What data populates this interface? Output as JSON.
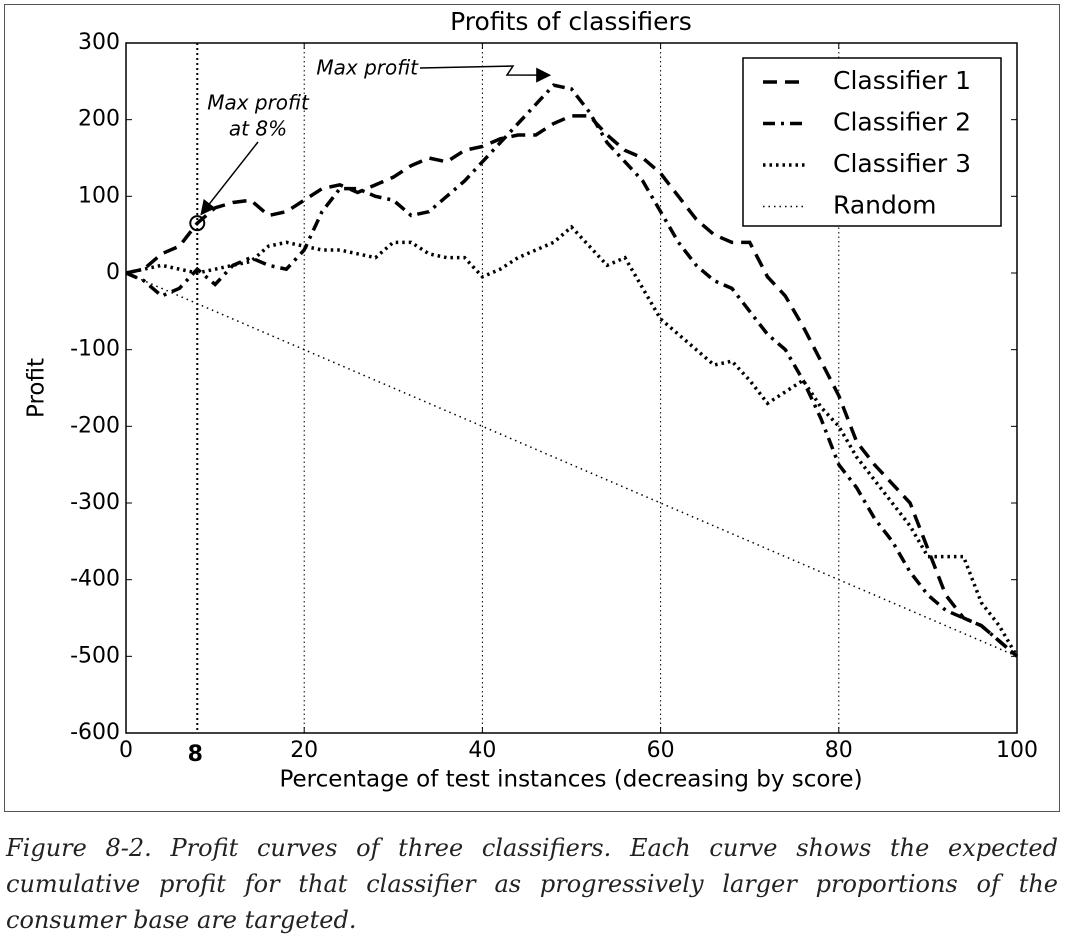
{
  "chart_data": {
    "type": "line",
    "title": "Profits of classifiers",
    "x_label": "Percentage of test instances (decreasing by score)",
    "y_label": "Profit",
    "x": [
      0,
      2,
      4,
      6,
      8,
      10,
      12,
      14,
      16,
      18,
      20,
      22,
      24,
      26,
      28,
      30,
      32,
      34,
      36,
      38,
      40,
      42,
      44,
      46,
      48,
      50,
      52,
      54,
      56,
      58,
      60,
      62,
      64,
      66,
      68,
      70,
      72,
      74,
      76,
      78,
      80,
      82,
      84,
      86,
      88,
      90,
      92,
      94,
      96,
      98,
      100
    ],
    "series": [
      {
        "name": "Classifier 1",
        "color": "#000000",
        "linestyle": "dashed",
        "values": [
          0,
          5,
          25,
          35,
          65,
          85,
          92,
          95,
          75,
          80,
          95,
          110,
          115,
          105,
          115,
          125,
          140,
          150,
          145,
          160,
          165,
          175,
          180,
          180,
          195,
          205,
          205,
          180,
          160,
          150,
          130,
          100,
          70,
          50,
          40,
          40,
          -5,
          -30,
          -70,
          -115,
          -160,
          -220,
          -250,
          -275,
          -300,
          -360,
          -420,
          -450,
          -460,
          -480,
          -500
        ]
      },
      {
        "name": "Classifier 2",
        "color": "#000000",
        "linestyle": "dashdot",
        "values": [
          0,
          -10,
          -30,
          -20,
          5,
          -15,
          10,
          20,
          10,
          5,
          30,
          80,
          110,
          110,
          100,
          95,
          75,
          80,
          100,
          120,
          145,
          170,
          195,
          220,
          245,
          240,
          210,
          170,
          145,
          120,
          80,
          40,
          10,
          -10,
          -20,
          -50,
          -80,
          -100,
          -140,
          -190,
          -250,
          -280,
          -320,
          -350,
          -390,
          -420,
          -440,
          -450,
          -460,
          -480,
          -500
        ]
      },
      {
        "name": "Classifier 3",
        "color": "#000000",
        "linestyle": "dotted",
        "values": [
          0,
          5,
          10,
          5,
          0,
          5,
          10,
          15,
          35,
          40,
          35,
          30,
          30,
          25,
          20,
          40,
          40,
          25,
          20,
          20,
          -5,
          5,
          20,
          30,
          40,
          60,
          35,
          10,
          20,
          -20,
          -60,
          -80,
          -100,
          -120,
          -115,
          -140,
          -170,
          -155,
          -140,
          -175,
          -200,
          -240,
          -270,
          -300,
          -330,
          -370,
          -370,
          -370,
          -430,
          -460,
          -500
        ]
      },
      {
        "name": "Random",
        "color": "#000000",
        "linestyle": "thin-dotted",
        "values": [
          0,
          -10,
          -20,
          -30,
          -40,
          -50,
          -60,
          -70,
          -80,
          -90,
          -100,
          -110,
          -120,
          -130,
          -140,
          -150,
          -160,
          -170,
          -180,
          -190,
          -200,
          -210,
          -220,
          -230,
          -240,
          -250,
          -260,
          -270,
          -280,
          -290,
          -300,
          -310,
          -320,
          -330,
          -340,
          -350,
          -360,
          -370,
          -380,
          -390,
          -400,
          -410,
          -420,
          -430,
          -440,
          -450,
          -460,
          -470,
          -480,
          -490,
          -500
        ]
      }
    ],
    "xlim": [
      0,
      100
    ],
    "ylim": [
      -600,
      300
    ],
    "xticks": [
      0,
      20,
      40,
      60,
      80,
      100
    ],
    "yticks": [
      -600,
      -500,
      -400,
      -300,
      -200,
      -100,
      0,
      100,
      200,
      300
    ],
    "grid": "x",
    "legend": "upper right",
    "highlight_x": 8,
    "annotations": [
      {
        "text": "Max profit",
        "series": 1,
        "index": 24
      },
      {
        "text": [
          "Max profit",
          "at 8%"
        ],
        "series": 0,
        "index": 4
      }
    ]
  },
  "caption": "Figure 8-2. Profit curves of three classifiers. Each curve shows the expected cumulative profit for that classifier as progressively larger proportions of the consumer base are targeted."
}
